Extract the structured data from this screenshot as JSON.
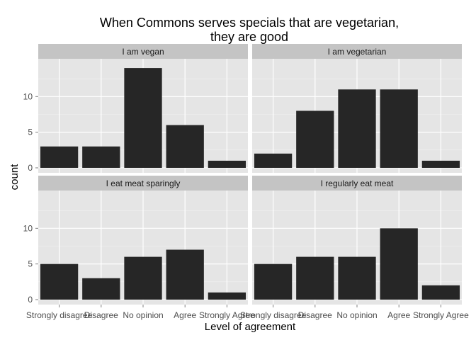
{
  "chart_data": {
    "type": "bar",
    "title_lines": [
      "When Commons serves specials that are vegetarian,",
      "they are good"
    ],
    "xlabel": "Level of agreement",
    "ylabel": "count",
    "categories": [
      "Strongly disagree",
      "Disagree",
      "No opinion",
      "Agree",
      "Strongly Agree"
    ],
    "ylim": [
      0,
      15
    ],
    "yticks": [
      0,
      5,
      10
    ],
    "grid": true,
    "bar_color": "#262626",
    "panel_bg": "#e5e5e5",
    "strip_bg": "#c4c4c4",
    "gridline_color": "#ffffff",
    "panels": [
      {
        "label": "I am vegan",
        "values": [
          3,
          3,
          14,
          6,
          1
        ]
      },
      {
        "label": "I am vegetarian",
        "values": [
          2,
          8,
          11,
          11,
          1
        ]
      },
      {
        "label": "I eat meat sparingly",
        "values": [
          5,
          3,
          6,
          7,
          1
        ]
      },
      {
        "label": "I regularly eat meat",
        "values": [
          5,
          6,
          6,
          10,
          2
        ]
      }
    ]
  }
}
